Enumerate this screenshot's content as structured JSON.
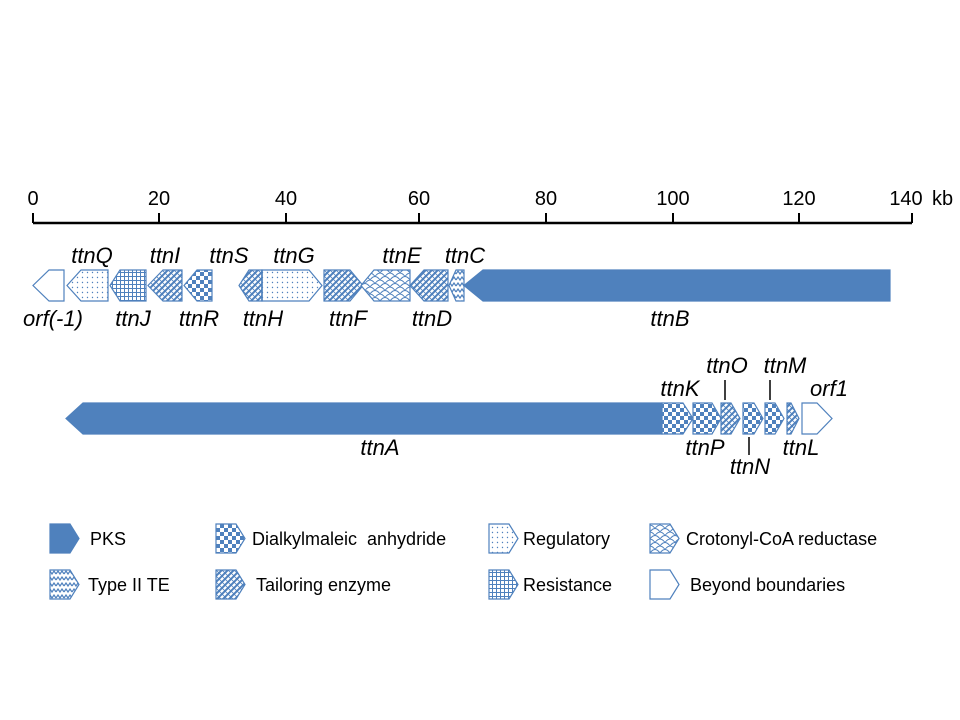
{
  "scale": {
    "unit": "kb",
    "max_kb": 140,
    "ticks": [
      "0",
      "20",
      "40",
      "60",
      "80",
      "100",
      "120",
      "140"
    ]
  },
  "gene_labels": {
    "orf_minus1": "orf(-1)",
    "ttnQ": "ttnQ",
    "ttnJ": "ttnJ",
    "ttnI": "ttnI",
    "ttnR": "ttnR",
    "ttnS": "ttnS",
    "ttnH": "ttnH",
    "ttnG": "ttnG",
    "ttnF": "ttnF",
    "ttnE": "ttnE",
    "ttnD": "ttnD",
    "ttnC": "ttnC",
    "ttnB": "ttnB",
    "ttnA": "ttnA",
    "ttnK": "ttnK",
    "ttnP": "ttnP",
    "ttnO": "ttnO",
    "ttnN": "ttnN",
    "ttnM": "ttnM",
    "ttnL": "ttnL",
    "orf1": "orf1"
  },
  "legend": {
    "pks": "PKS",
    "dialkylmaleic": "Dialkylmaleic  anhydride",
    "regulatory": "Regulatory",
    "crotonyl": "Crotonyl-CoA reductase",
    "type2te": "Type II TE",
    "tailoring": "Tailoring enzyme",
    "resistance": "Resistance",
    "beyond": "Beyond boundaries"
  },
  "colors": {
    "pks": "#4f81bd",
    "outline": "#4f81bd",
    "pattern": "#4f81bd"
  }
}
